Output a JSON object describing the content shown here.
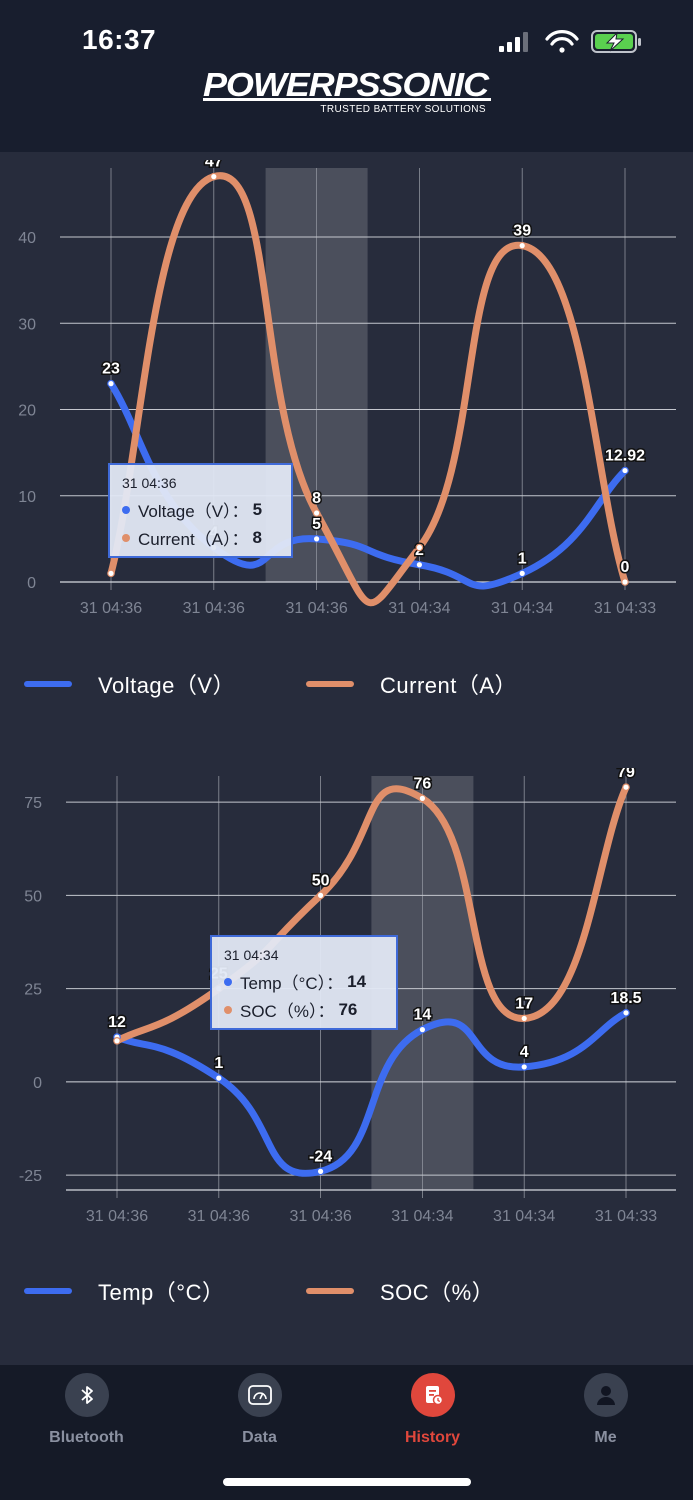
{
  "status_bar": {
    "time": "16:37"
  },
  "brand": {
    "logo_text": "POWERPSSONIC",
    "tagline": "TRUSTED BATTERY SOLUTIONS"
  },
  "colors": {
    "voltage": "#3d6cf0",
    "current": "#e08f6a",
    "accent": "#e0473c",
    "background": "#272c3c"
  },
  "chart_data": [
    {
      "type": "line",
      "x": [
        "31 04:36",
        "31 04:36",
        "31 04:36",
        "31 04:34",
        "31 04:34",
        "31 04:33"
      ],
      "ylim": [
        0,
        48
      ],
      "yticks": [
        0,
        10,
        20,
        30,
        40
      ],
      "highlight_index": 2,
      "series": [
        {
          "name": "Voltage（V）",
          "values": [
            23,
            4,
            5,
            2,
            1,
            12.92
          ],
          "labels": [
            "23",
            "4",
            "5",
            "2",
            "1",
            "12.92"
          ]
        },
        {
          "name": "Current（A）",
          "values": [
            1,
            47,
            8,
            4,
            39,
            0
          ],
          "labels": [
            "",
            "47",
            "8",
            "",
            "39",
            "0"
          ]
        }
      ]
    },
    {
      "type": "line",
      "x": [
        "31 04:36",
        "31 04:36",
        "31 04:36",
        "31 04:34",
        "31 04:34",
        "31 04:33"
      ],
      "ylim": [
        -29,
        82
      ],
      "yticks": [
        -25,
        0,
        25,
        50,
        75
      ],
      "highlight_index": 3,
      "series": [
        {
          "name": "Temp（°C）",
          "values": [
            12,
            1,
            -24,
            14,
            4,
            18.5
          ],
          "labels": [
            "12",
            "1",
            "-24",
            "14",
            "4",
            "18.5"
          ]
        },
        {
          "name": "SOC（%）",
          "values": [
            11,
            25,
            50,
            76,
            17,
            79
          ],
          "labels": [
            "",
            "25",
            "50",
            "76",
            "17",
            "79"
          ]
        }
      ]
    }
  ],
  "tooltips": {
    "chart1": {
      "time": "31 04:36",
      "row1_label": "Voltage（V）：",
      "row1_value": "5",
      "row2_label": "Current（A）：",
      "row2_value": "8"
    },
    "chart2": {
      "time": "31 04:34",
      "row1_label": "Temp（°C）：",
      "row1_value": "14",
      "row2_label": "SOC（%）：",
      "row2_value": "76"
    }
  },
  "tabs": [
    {
      "label": "Bluetooth",
      "icon": "bluetooth-icon",
      "active": false
    },
    {
      "label": "Data",
      "icon": "gauge-icon",
      "active": false
    },
    {
      "label": "History",
      "icon": "history-icon",
      "active": true
    },
    {
      "label": "Me",
      "icon": "user-icon",
      "active": false
    }
  ]
}
